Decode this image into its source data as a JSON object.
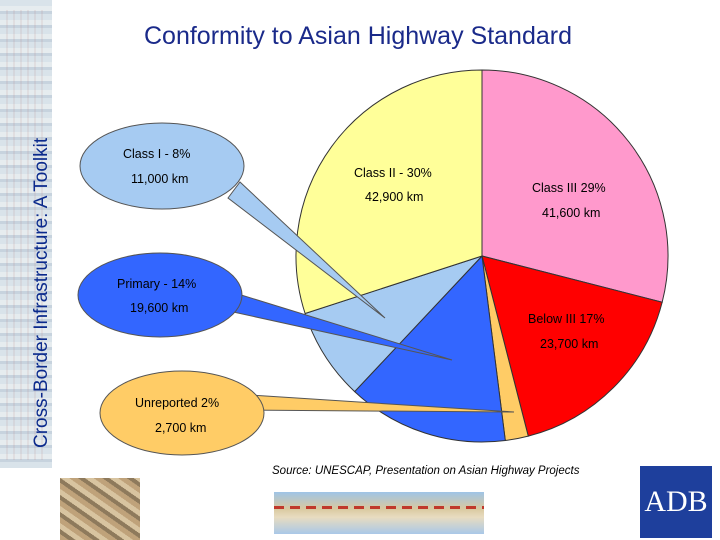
{
  "side_title": "Cross-Border Infrastructure: A Toolkit",
  "title": "Conformity to Asian Highway Standard",
  "source": "Source: UNESCAP, Presentation on Asian Highway Projects",
  "logo_text": "ADB",
  "chart_data": {
    "type": "pie",
    "title": "Conformity to Asian Highway Standard",
    "slices": [
      {
        "label": "Class I - 8%",
        "percent": 8,
        "length": "11,000 km",
        "color": "#a6cbf2"
      },
      {
        "label": "Class II - 30%",
        "percent": 30,
        "length": "42,900 km",
        "color": "#ffff99"
      },
      {
        "label": "Class III 29%",
        "percent": 29,
        "length": "41,600 km",
        "color": "#ff99cc"
      },
      {
        "label": "Below III 17%",
        "percent": 17,
        "length": "23,700 km",
        "color": "#ff0000"
      },
      {
        "label": "Unreported 2%",
        "percent": 2,
        "length": "2,700 km",
        "color": "#ffcc66"
      },
      {
        "label": "Primary - 14%",
        "percent": 14,
        "length": "19,600 km",
        "color": "#3366ff"
      }
    ]
  }
}
